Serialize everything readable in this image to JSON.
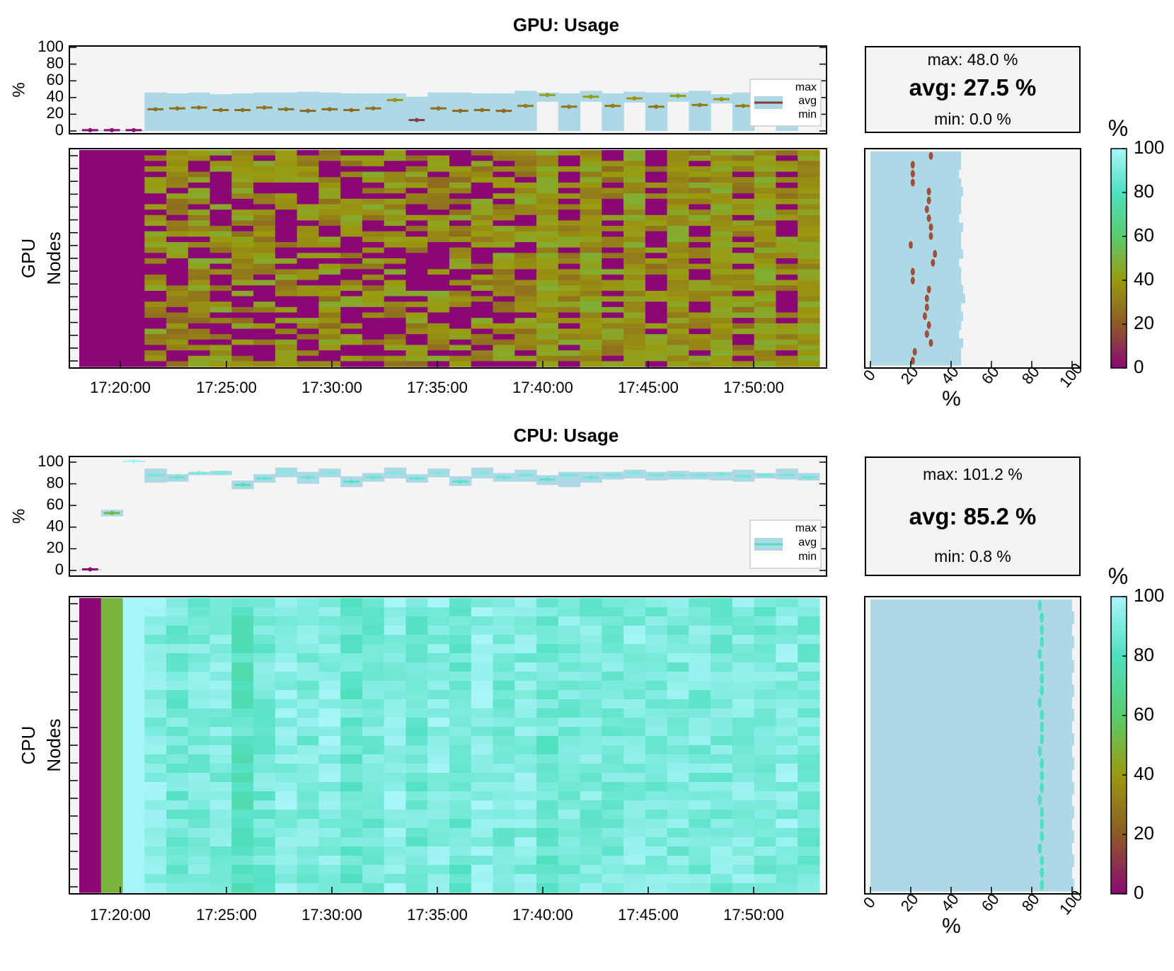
{
  "chart_data": [
    {
      "id": "gpu",
      "type": "line",
      "title": "GPU: Usage",
      "ylabel": "%",
      "ylim": [
        0,
        100
      ],
      "yticks": [
        "0",
        "20",
        "40",
        "60",
        "80",
        "100"
      ],
      "xticks": [
        "17:20:00",
        "17:25:00",
        "17:30:00",
        "17:35:00",
        "17:40:00",
        "17:45:00",
        "17:50:00"
      ],
      "legend": [
        "max",
        "avg",
        "min"
      ],
      "legend_position": "right",
      "series": [
        {
          "name": "avg",
          "values": [
            1,
            1,
            1,
            26,
            27,
            28,
            25,
            25,
            28,
            26,
            24,
            26,
            25,
            27,
            37,
            13,
            27,
            24,
            25,
            24,
            30,
            43,
            29,
            41,
            30,
            39,
            29,
            42,
            31,
            38,
            30,
            41,
            30,
            40
          ]
        },
        {
          "name": "max",
          "values": [
            1,
            1,
            1,
            46,
            45,
            46,
            44,
            45,
            46,
            46,
            47,
            46,
            45,
            45,
            45,
            41,
            46,
            46,
            45,
            45,
            48,
            46,
            45,
            48,
            45,
            47,
            46,
            46,
            48,
            44,
            46,
            47,
            45,
            45
          ]
        },
        {
          "name": "min",
          "values": [
            0,
            0,
            0,
            0,
            0,
            0,
            0,
            0,
            0,
            0,
            0,
            0,
            0,
            0,
            0,
            0,
            0,
            0,
            0,
            0,
            0,
            35,
            0,
            35,
            0,
            34,
            0,
            35,
            0,
            33,
            0,
            34,
            0,
            35
          ]
        }
      ],
      "heatmap": {
        "ylabel_lines": [
          "GPU",
          "Nodes"
        ],
        "rows": 40
      },
      "stats": {
        "max": "max: 48.0 %",
        "avg": "avg: 27.5 %",
        "min": "min: 0.0 %"
      },
      "side_xticks": [
        "0",
        "20",
        "40",
        "60",
        "80",
        "100"
      ],
      "side_xlabel": "%",
      "side_avg": [
        30,
        21,
        21,
        21,
        29,
        29,
        28,
        29,
        30,
        30,
        20,
        32,
        31,
        21,
        21,
        29,
        28,
        28,
        27,
        29,
        28,
        30,
        22,
        21
      ],
      "side_max": [
        45,
        45,
        44,
        45,
        46,
        45,
        45,
        44,
        46,
        45,
        45,
        46,
        44,
        45,
        45,
        46,
        47,
        45,
        46,
        45,
        44,
        46,
        45,
        45
      ],
      "colorbar": {
        "label": "%",
        "ticks": [
          "0",
          "20",
          "40",
          "60",
          "80",
          "100"
        ]
      }
    },
    {
      "id": "cpu",
      "type": "line",
      "title": "CPU: Usage",
      "ylabel": "%",
      "ylim": [
        0,
        100
      ],
      "yticks": [
        "0",
        "20",
        "40",
        "60",
        "80",
        "100"
      ],
      "xticks": [
        "17:20:00",
        "17:25:00",
        "17:30:00",
        "17:35:00",
        "17:40:00",
        "17:45:00",
        "17:50:00"
      ],
      "legend": [
        "max",
        "avg",
        "min"
      ],
      "legend_position": "right",
      "series": [
        {
          "name": "avg",
          "values": [
            1,
            53,
            101,
            88,
            86,
            90,
            90,
            79,
            85,
            91,
            86,
            90,
            82,
            86,
            90,
            85,
            90,
            82,
            90,
            86,
            88,
            84,
            88,
            86,
            88,
            90,
            88,
            88,
            88,
            89,
            87,
            88,
            88,
            86
          ]
        },
        {
          "name": "max",
          "values": [
            1,
            56,
            101,
            94,
            89,
            91,
            92,
            83,
            89,
            95,
            91,
            94,
            87,
            90,
            95,
            89,
            94,
            87,
            95,
            90,
            93,
            88,
            91,
            91,
            91,
            93,
            91,
            92,
            91,
            91,
            93,
            90,
            94,
            90
          ]
        },
        {
          "name": "min",
          "values": [
            0,
            50,
            100,
            81,
            82,
            88,
            88,
            75,
            81,
            86,
            80,
            86,
            77,
            82,
            85,
            81,
            86,
            78,
            85,
            82,
            82,
            79,
            77,
            81,
            84,
            85,
            83,
            84,
            84,
            83,
            82,
            85,
            84,
            83
          ]
        }
      ],
      "heatmap": {
        "ylabel_lines": [
          "CPU",
          "Nodes"
        ],
        "rows": 32
      },
      "stats": {
        "max": "max: 101.2 %",
        "avg": "avg: 85.2 %",
        "min": "min: 0.8 %"
      },
      "side_xticks": [
        "0",
        "20",
        "40",
        "60",
        "80",
        "100"
      ],
      "side_xlabel": "%",
      "side_avg": [
        84,
        85,
        85,
        85,
        84,
        85,
        85,
        85,
        84,
        85,
        85,
        85,
        84,
        85,
        85,
        85,
        84,
        85,
        85,
        85,
        84,
        85,
        85,
        85
      ],
      "side_max": [
        100,
        101,
        100,
        101,
        100,
        101,
        100,
        101,
        100,
        101,
        100,
        101,
        100,
        101,
        100,
        101,
        100,
        101,
        100,
        101,
        100,
        101,
        100,
        101
      ],
      "colorbar": {
        "label": "%",
        "ticks": [
          "0",
          "20",
          "40",
          "60",
          "80",
          "100"
        ]
      }
    }
  ],
  "colors": {
    "band": "#add8e6",
    "panel_bg": "#f4f4f4",
    "colormap": [
      "#8b0874",
      "#8b5b27",
      "#9a9a0e",
      "#59cc6e",
      "#4fe0c0",
      "#a8f5f8"
    ]
  }
}
